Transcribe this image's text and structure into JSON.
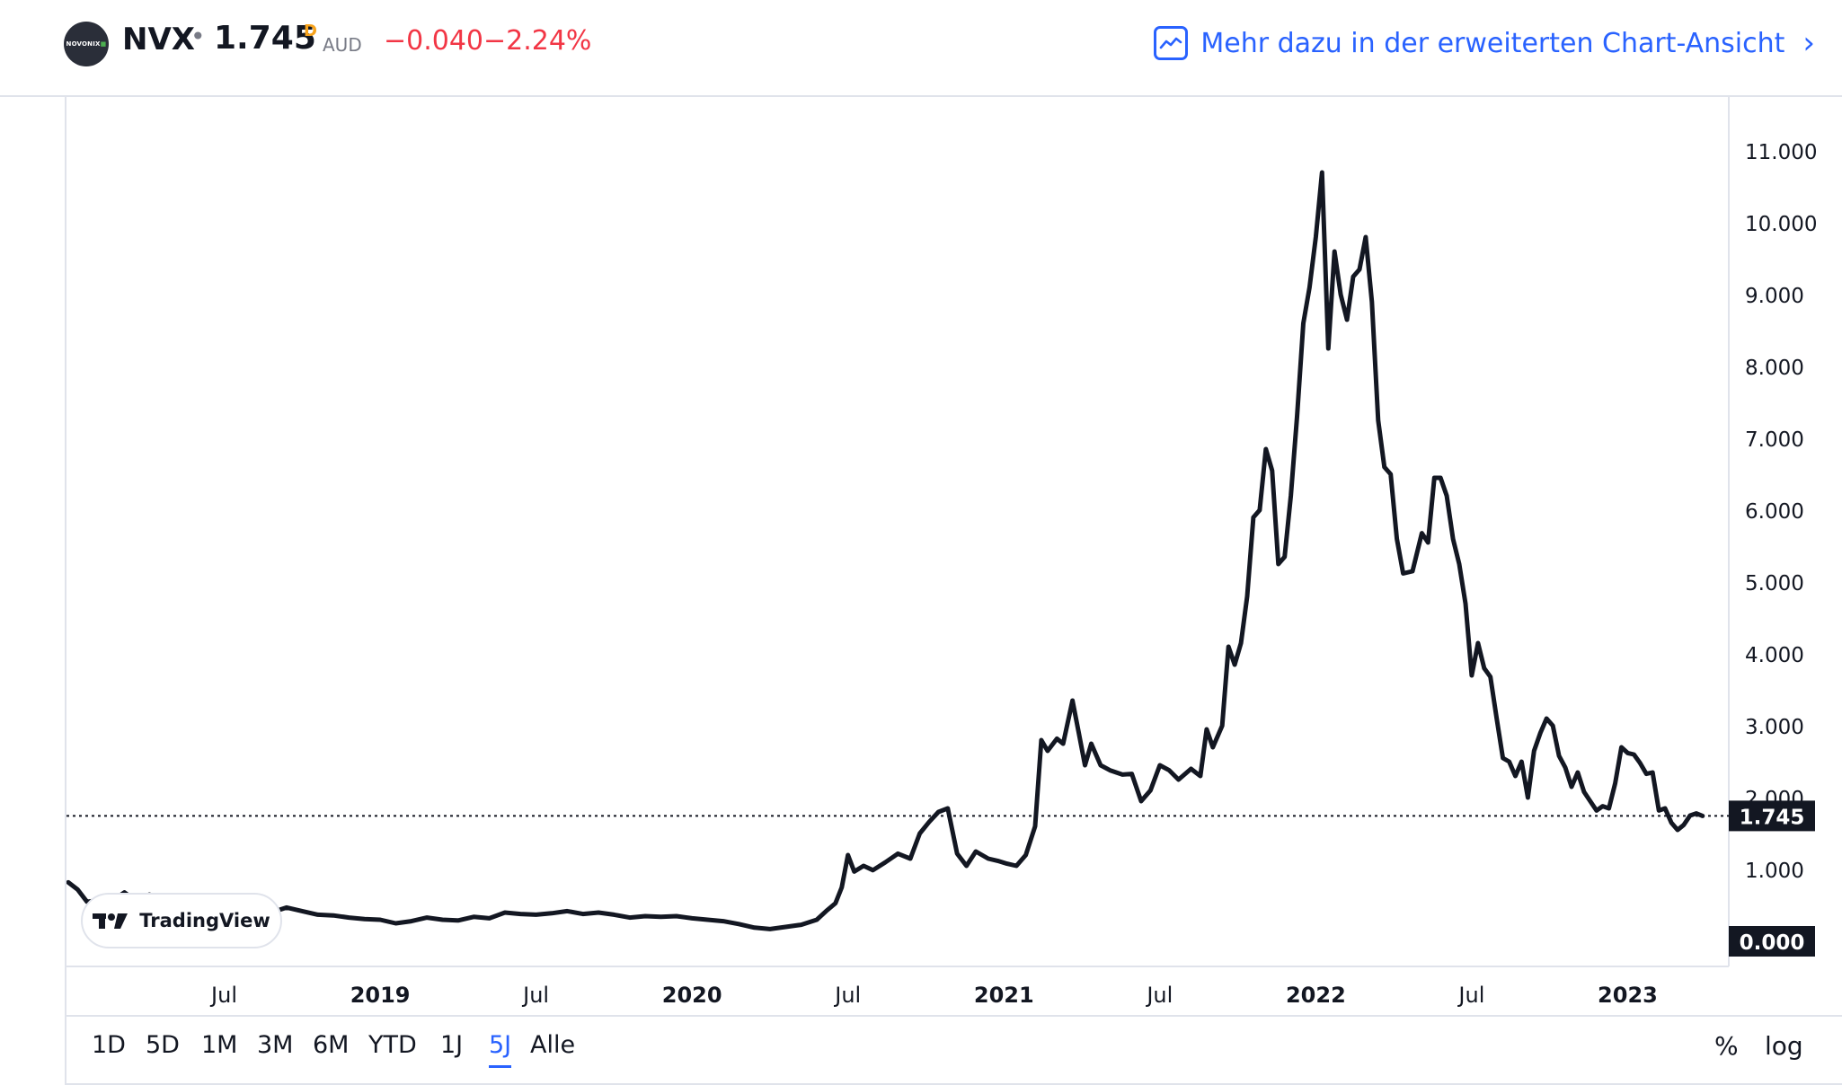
{
  "header": {
    "logo_text": "NOVONIX",
    "symbol": "NVX",
    "separator": "•",
    "price": "1.745",
    "price_flag": "D",
    "currency": "AUD",
    "change": "−0.040",
    "change_pct": "−2.24%",
    "ext_link_label": "Mehr dazu in der erweiterten Chart-Ansicht",
    "chevron": "›",
    "ext_link_icon": "chart-line-icon"
  },
  "tv_badge": {
    "name": "TradingView"
  },
  "colors": {
    "line": "#131722",
    "negative": "#f23645",
    "accent": "#2962ff",
    "flag": "#f7a21b"
  },
  "timeframes": [
    "1D",
    "5D",
    "1M",
    "3M",
    "6M",
    "YTD",
    "1J",
    "5J",
    "Alle"
  ],
  "active_timeframe": "5J",
  "right_tools": {
    "percent": "%",
    "log": "log"
  },
  "chart_data": {
    "type": "line",
    "ylim": [
      -0.35,
      11.75
    ],
    "y_ticks": [
      "11.000",
      "10.000",
      "9.000",
      "8.000",
      "7.000",
      "6.000",
      "5.000",
      "4.000",
      "3.000",
      "2.000",
      "1.000"
    ],
    "y_tick_values": [
      11,
      10,
      9,
      8,
      7,
      6,
      5,
      4,
      3,
      2,
      1
    ],
    "price_label": "1.745",
    "price_line_value": 1.745,
    "zero_label": "0.000",
    "x_ticks": [
      {
        "label": "Jul",
        "bold": false,
        "t": 2018.5
      },
      {
        "label": "2019",
        "bold": true,
        "t": 2019.0
      },
      {
        "label": "Jul",
        "bold": false,
        "t": 2019.5
      },
      {
        "label": "2020",
        "bold": true,
        "t": 2020.0
      },
      {
        "label": "Jul",
        "bold": false,
        "t": 2020.5
      },
      {
        "label": "2021",
        "bold": true,
        "t": 2021.0
      },
      {
        "label": "Jul",
        "bold": false,
        "t": 2021.5
      },
      {
        "label": "2022",
        "bold": true,
        "t": 2022.0
      },
      {
        "label": "Jul",
        "bold": false,
        "t": 2022.5
      },
      {
        "label": "2023",
        "bold": true,
        "t": 2023.0
      }
    ],
    "series": [
      {
        "points": [
          [
            2018.0,
            0.82
          ],
          [
            2018.03,
            0.72
          ],
          [
            2018.06,
            0.55
          ],
          [
            2018.1,
            0.57
          ],
          [
            2018.14,
            0.56
          ],
          [
            2018.18,
            0.68
          ],
          [
            2018.22,
            0.55
          ],
          [
            2018.26,
            0.65
          ],
          [
            2018.3,
            0.6
          ],
          [
            2018.35,
            0.5
          ],
          [
            2018.4,
            0.52
          ],
          [
            2018.45,
            0.47
          ],
          [
            2018.5,
            0.45
          ],
          [
            2018.55,
            0.4
          ],
          [
            2018.6,
            0.45
          ],
          [
            2018.65,
            0.4
          ],
          [
            2018.7,
            0.47
          ],
          [
            2018.75,
            0.42
          ],
          [
            2018.8,
            0.37
          ],
          [
            2018.85,
            0.36
          ],
          [
            2018.9,
            0.33
          ],
          [
            2018.95,
            0.31
          ],
          [
            2019.0,
            0.3
          ],
          [
            2019.05,
            0.25
          ],
          [
            2019.1,
            0.28
          ],
          [
            2019.15,
            0.33
          ],
          [
            2019.2,
            0.3
          ],
          [
            2019.25,
            0.29
          ],
          [
            2019.3,
            0.34
          ],
          [
            2019.35,
            0.32
          ],
          [
            2019.4,
            0.4
          ],
          [
            2019.45,
            0.38
          ],
          [
            2019.5,
            0.37
          ],
          [
            2019.55,
            0.39
          ],
          [
            2019.6,
            0.42
          ],
          [
            2019.65,
            0.38
          ],
          [
            2019.7,
            0.4
          ],
          [
            2019.75,
            0.37
          ],
          [
            2019.8,
            0.33
          ],
          [
            2019.85,
            0.35
          ],
          [
            2019.9,
            0.34
          ],
          [
            2019.95,
            0.35
          ],
          [
            2020.0,
            0.32
          ],
          [
            2020.05,
            0.3
          ],
          [
            2020.1,
            0.28
          ],
          [
            2020.15,
            0.24
          ],
          [
            2020.2,
            0.19
          ],
          [
            2020.25,
            0.17
          ],
          [
            2020.3,
            0.2
          ],
          [
            2020.35,
            0.23
          ],
          [
            2020.4,
            0.3
          ],
          [
            2020.43,
            0.42
          ],
          [
            2020.46,
            0.53
          ],
          [
            2020.48,
            0.75
          ],
          [
            2020.5,
            1.2
          ],
          [
            2020.52,
            0.97
          ],
          [
            2020.55,
            1.05
          ],
          [
            2020.58,
            0.99
          ],
          [
            2020.62,
            1.1
          ],
          [
            2020.66,
            1.22
          ],
          [
            2020.7,
            1.15
          ],
          [
            2020.73,
            1.5
          ],
          [
            2020.76,
            1.66
          ],
          [
            2020.79,
            1.8
          ],
          [
            2020.82,
            1.85
          ],
          [
            2020.85,
            1.22
          ],
          [
            2020.88,
            1.05
          ],
          [
            2020.91,
            1.25
          ],
          [
            2020.95,
            1.15
          ],
          [
            2020.98,
            1.12
          ],
          [
            2021.01,
            1.08
          ],
          [
            2021.04,
            1.05
          ],
          [
            2021.07,
            1.2
          ],
          [
            2021.1,
            1.6
          ],
          [
            2021.12,
            2.8
          ],
          [
            2021.14,
            2.65
          ],
          [
            2021.17,
            2.82
          ],
          [
            2021.19,
            2.75
          ],
          [
            2021.22,
            3.35
          ],
          [
            2021.24,
            2.9
          ],
          [
            2021.26,
            2.45
          ],
          [
            2021.28,
            2.75
          ],
          [
            2021.31,
            2.45
          ],
          [
            2021.34,
            2.38
          ],
          [
            2021.38,
            2.32
          ],
          [
            2021.41,
            2.33
          ],
          [
            2021.44,
            1.95
          ],
          [
            2021.47,
            2.1
          ],
          [
            2021.5,
            2.45
          ],
          [
            2021.53,
            2.38
          ],
          [
            2021.56,
            2.25
          ],
          [
            2021.6,
            2.4
          ],
          [
            2021.63,
            2.3
          ],
          [
            2021.65,
            2.95
          ],
          [
            2021.67,
            2.7
          ],
          [
            2021.7,
            3.0
          ],
          [
            2021.72,
            4.1
          ],
          [
            2021.74,
            3.85
          ],
          [
            2021.76,
            4.15
          ],
          [
            2021.78,
            4.8
          ],
          [
            2021.8,
            5.9
          ],
          [
            2021.82,
            6.0
          ],
          [
            2021.84,
            6.85
          ],
          [
            2021.86,
            6.55
          ],
          [
            2021.88,
            5.25
          ],
          [
            2021.9,
            5.35
          ],
          [
            2021.92,
            6.2
          ],
          [
            2021.94,
            7.3
          ],
          [
            2021.96,
            8.6
          ],
          [
            2021.98,
            9.1
          ],
          [
            2022.0,
            9.8
          ],
          [
            2022.02,
            10.7
          ],
          [
            2022.04,
            8.25
          ],
          [
            2022.06,
            9.6
          ],
          [
            2022.08,
            9.0
          ],
          [
            2022.1,
            8.65
          ],
          [
            2022.12,
            9.25
          ],
          [
            2022.14,
            9.35
          ],
          [
            2022.16,
            9.8
          ],
          [
            2022.18,
            8.9
          ],
          [
            2022.2,
            7.25
          ],
          [
            2022.22,
            6.6
          ],
          [
            2022.24,
            6.5
          ],
          [
            2022.26,
            5.6
          ],
          [
            2022.28,
            5.12
          ],
          [
            2022.31,
            5.15
          ],
          [
            2022.34,
            5.68
          ],
          [
            2022.36,
            5.55
          ],
          [
            2022.38,
            6.45
          ],
          [
            2022.4,
            6.45
          ],
          [
            2022.42,
            6.2
          ],
          [
            2022.44,
            5.6
          ],
          [
            2022.46,
            5.25
          ],
          [
            2022.48,
            4.7
          ],
          [
            2022.5,
            3.7
          ],
          [
            2022.52,
            4.15
          ],
          [
            2022.54,
            3.8
          ],
          [
            2022.56,
            3.68
          ],
          [
            2022.58,
            3.1
          ],
          [
            2022.6,
            2.55
          ],
          [
            2022.62,
            2.5
          ],
          [
            2022.64,
            2.3
          ],
          [
            2022.66,
            2.5
          ],
          [
            2022.68,
            2.0
          ],
          [
            2022.7,
            2.65
          ],
          [
            2022.72,
            2.9
          ],
          [
            2022.74,
            3.1
          ],
          [
            2022.76,
            3.0
          ],
          [
            2022.78,
            2.58
          ],
          [
            2022.8,
            2.42
          ],
          [
            2022.82,
            2.15
          ],
          [
            2022.84,
            2.35
          ],
          [
            2022.86,
            2.08
          ],
          [
            2022.88,
            1.95
          ],
          [
            2022.9,
            1.82
          ],
          [
            2022.92,
            1.88
          ],
          [
            2022.94,
            1.85
          ],
          [
            2022.96,
            2.2
          ],
          [
            2022.98,
            2.7
          ],
          [
            2023.0,
            2.62
          ],
          [
            2023.02,
            2.6
          ],
          [
            2023.04,
            2.48
          ],
          [
            2023.06,
            2.33
          ],
          [
            2023.08,
            2.35
          ],
          [
            2023.1,
            1.82
          ],
          [
            2023.12,
            1.85
          ],
          [
            2023.14,
            1.65
          ],
          [
            2023.16,
            1.55
          ],
          [
            2023.18,
            1.62
          ],
          [
            2023.2,
            1.75
          ],
          [
            2023.22,
            1.78
          ],
          [
            2023.24,
            1.745
          ]
        ]
      }
    ]
  }
}
